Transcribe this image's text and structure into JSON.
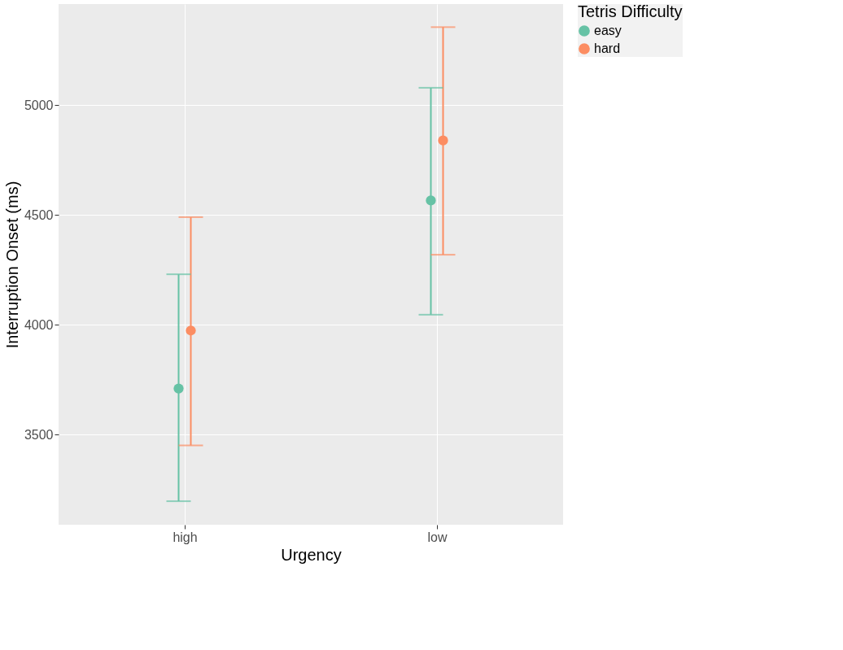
{
  "chart_data": {
    "type": "scatter",
    "xlabel": "Urgency",
    "ylabel": "Interruption Onset (ms)",
    "legend_title": "Tetris Difficulty",
    "categories": [
      "high",
      "low"
    ],
    "series": [
      {
        "name": "easy",
        "color": "#66c2a5",
        "values": [
          3710,
          4566
        ],
        "errors": [
          [
            3197,
            4230
          ],
          [
            4046,
            5079
          ]
        ]
      },
      {
        "name": "hard",
        "color": "#fc8d62",
        "values": [
          3974,
          4839
        ],
        "errors": [
          [
            3451,
            4490
          ],
          [
            4319,
            5355
          ]
        ]
      }
    ],
    "ylim": [
      3090,
      5460
    ],
    "yticks": [
      3500,
      4000,
      4500,
      5000
    ],
    "grid": true,
    "legend": "right",
    "marker": "circle"
  }
}
